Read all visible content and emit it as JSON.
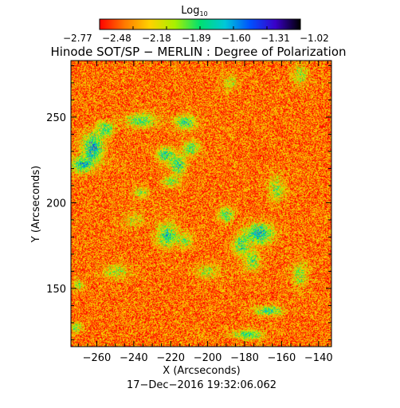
{
  "chart_data": {
    "type": "heatmap",
    "title": "Hinode SOT/SP − MERLIN : Degree of Polarization",
    "colorbar": {
      "label_base": "Log",
      "label_sub": "10",
      "tick_labels": [
        "−2.77",
        "−2.48",
        "−2.18",
        "−1.89",
        "−1.60",
        "−1.31",
        "−1.02"
      ],
      "range": [
        -2.77,
        -1.02
      ],
      "colors": [
        "#ff0000",
        "#ff7a00",
        "#ffd200",
        "#a8f000",
        "#00e070",
        "#00c8d8",
        "#0050ff",
        "#3a00c8",
        "#000000"
      ]
    },
    "xlabel": "X (Arcseconds)",
    "ylabel": "Y (Arcseconds)",
    "xlim": [
      -274,
      -133
    ],
    "ylim": [
      116,
      283
    ],
    "x_ticks": [
      {
        "value": -260,
        "label": "−260"
      },
      {
        "value": -240,
        "label": "−240"
      },
      {
        "value": -220,
        "label": "−220"
      },
      {
        "value": -200,
        "label": "−200"
      },
      {
        "value": -180,
        "label": "−180"
      },
      {
        "value": -160,
        "label": "−160"
      },
      {
        "value": -140,
        "label": "−140"
      }
    ],
    "y_ticks": [
      {
        "value": 150,
        "label": "150"
      },
      {
        "value": 200,
        "label": "200"
      },
      {
        "value": 250,
        "label": "250"
      }
    ],
    "background_level": -2.55,
    "noise_amplitude": 0.32,
    "features": [
      {
        "x": -262,
        "y": 232,
        "sx": 4,
        "sy": 6,
        "amp": 0.8
      },
      {
        "x": -268,
        "y": 222,
        "sx": 4,
        "sy": 3,
        "amp": 0.75
      },
      {
        "x": -255,
        "y": 243,
        "sx": 3,
        "sy": 3,
        "amp": 0.6
      },
      {
        "x": -236,
        "y": 248,
        "sx": 6,
        "sy": 3,
        "amp": 0.55
      },
      {
        "x": -212,
        "y": 247,
        "sx": 4,
        "sy": 3,
        "amp": 0.65
      },
      {
        "x": -223,
        "y": 228,
        "sx": 3,
        "sy": 3,
        "amp": 0.7
      },
      {
        "x": -216,
        "y": 222,
        "sx": 3,
        "sy": 4,
        "amp": 0.65
      },
      {
        "x": -209,
        "y": 232,
        "sx": 3,
        "sy": 3,
        "amp": 0.6
      },
      {
        "x": -220,
        "y": 212,
        "sx": 3,
        "sy": 2,
        "amp": 0.5
      },
      {
        "x": -236,
        "y": 206,
        "sx": 3,
        "sy": 2,
        "amp": 0.5
      },
      {
        "x": -222,
        "y": 181,
        "sx": 4,
        "sy": 5,
        "amp": 0.65
      },
      {
        "x": -212,
        "y": 178,
        "sx": 3,
        "sy": 3,
        "amp": 0.45
      },
      {
        "x": -190,
        "y": 193,
        "sx": 3,
        "sy": 3,
        "amp": 0.6
      },
      {
        "x": -172,
        "y": 182,
        "sx": 5,
        "sy": 4,
        "amp": 0.85
      },
      {
        "x": -182,
        "y": 175,
        "sx": 3,
        "sy": 4,
        "amp": 0.6
      },
      {
        "x": -176,
        "y": 166,
        "sx": 3,
        "sy": 4,
        "amp": 0.5
      },
      {
        "x": -167,
        "y": 137,
        "sx": 5,
        "sy": 2,
        "amp": 0.65
      },
      {
        "x": -178,
        "y": 123,
        "sx": 6,
        "sy": 2,
        "amp": 0.6
      },
      {
        "x": -271,
        "y": 127,
        "sx": 2,
        "sy": 2,
        "amp": 0.5
      },
      {
        "x": -270,
        "y": 152,
        "sx": 2,
        "sy": 2,
        "amp": 0.45
      },
      {
        "x": -250,
        "y": 160,
        "sx": 5,
        "sy": 3,
        "amp": 0.4
      },
      {
        "x": -200,
        "y": 160,
        "sx": 5,
        "sy": 3,
        "amp": 0.35
      },
      {
        "x": -163,
        "y": 208,
        "sx": 3,
        "sy": 5,
        "amp": 0.45
      },
      {
        "x": -150,
        "y": 158,
        "sx": 3,
        "sy": 5,
        "amp": 0.45
      },
      {
        "x": -150,
        "y": 274,
        "sx": 3,
        "sy": 4,
        "amp": 0.4
      },
      {
        "x": -188,
        "y": 270,
        "sx": 3,
        "sy": 3,
        "amp": 0.35
      },
      {
        "x": -240,
        "y": 190,
        "sx": 4,
        "sy": 3,
        "amp": 0.3
      }
    ]
  },
  "footer": {
    "timestamp": "17−Dec−2016 19:32:06.062"
  }
}
